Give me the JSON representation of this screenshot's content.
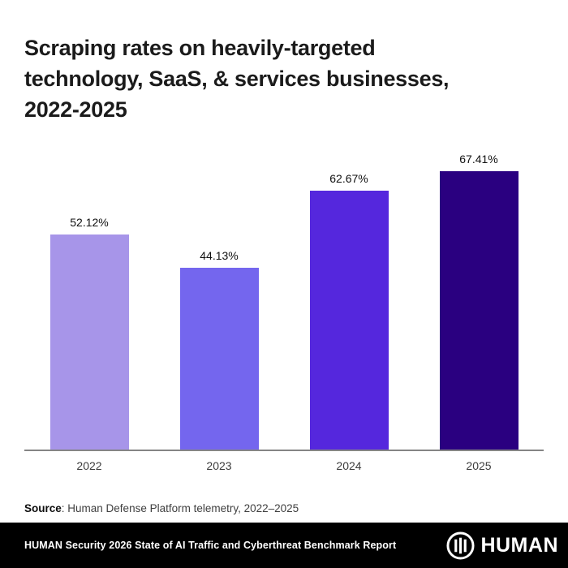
{
  "header": {
    "title_lines": [
      "Scraping rates on heavily-targeted",
      "technology, SaaS, & services businesses,",
      "2022-2025"
    ]
  },
  "chart_data": {
    "type": "bar",
    "title": "Scraping rates on heavily-targeted technology, SaaS, & services businesses, 2022-2025",
    "categories": [
      "2022",
      "2023",
      "2024",
      "2025"
    ],
    "values": [
      52.12,
      44.13,
      62.67,
      67.41
    ],
    "value_labels": [
      "52.12%",
      "44.13%",
      "62.67%",
      "67.41%"
    ],
    "bar_colors": [
      "#a795e9",
      "#7466ee",
      "#5527dd",
      "#2a0080"
    ],
    "xlabel": "",
    "ylabel": "",
    "ylim": [
      0,
      74
    ],
    "grid": false,
    "legend": false,
    "annotations": "percent value labels shown above each bar; only x baseline drawn, no y-axis"
  },
  "source": {
    "label": "Source",
    "text": ": Human Defense Platform telemetry, 2022–2025"
  },
  "footer": {
    "report_title": "HUMAN Security 2026 State of AI Traffic and Cyberthreat Benchmark Report",
    "brand": "HUMAN",
    "logo_icon": "circle-barcode-icon",
    "background_color": "#000000"
  },
  "colors": {
    "page_background": "#ffffff",
    "title_text": "#1b1b1b",
    "axis_line": "#858585",
    "axis_label_text": "#3c3c3c",
    "value_label_text": "#101010",
    "source_text": "#3f3f3f",
    "footer_text": "#ffffff"
  }
}
